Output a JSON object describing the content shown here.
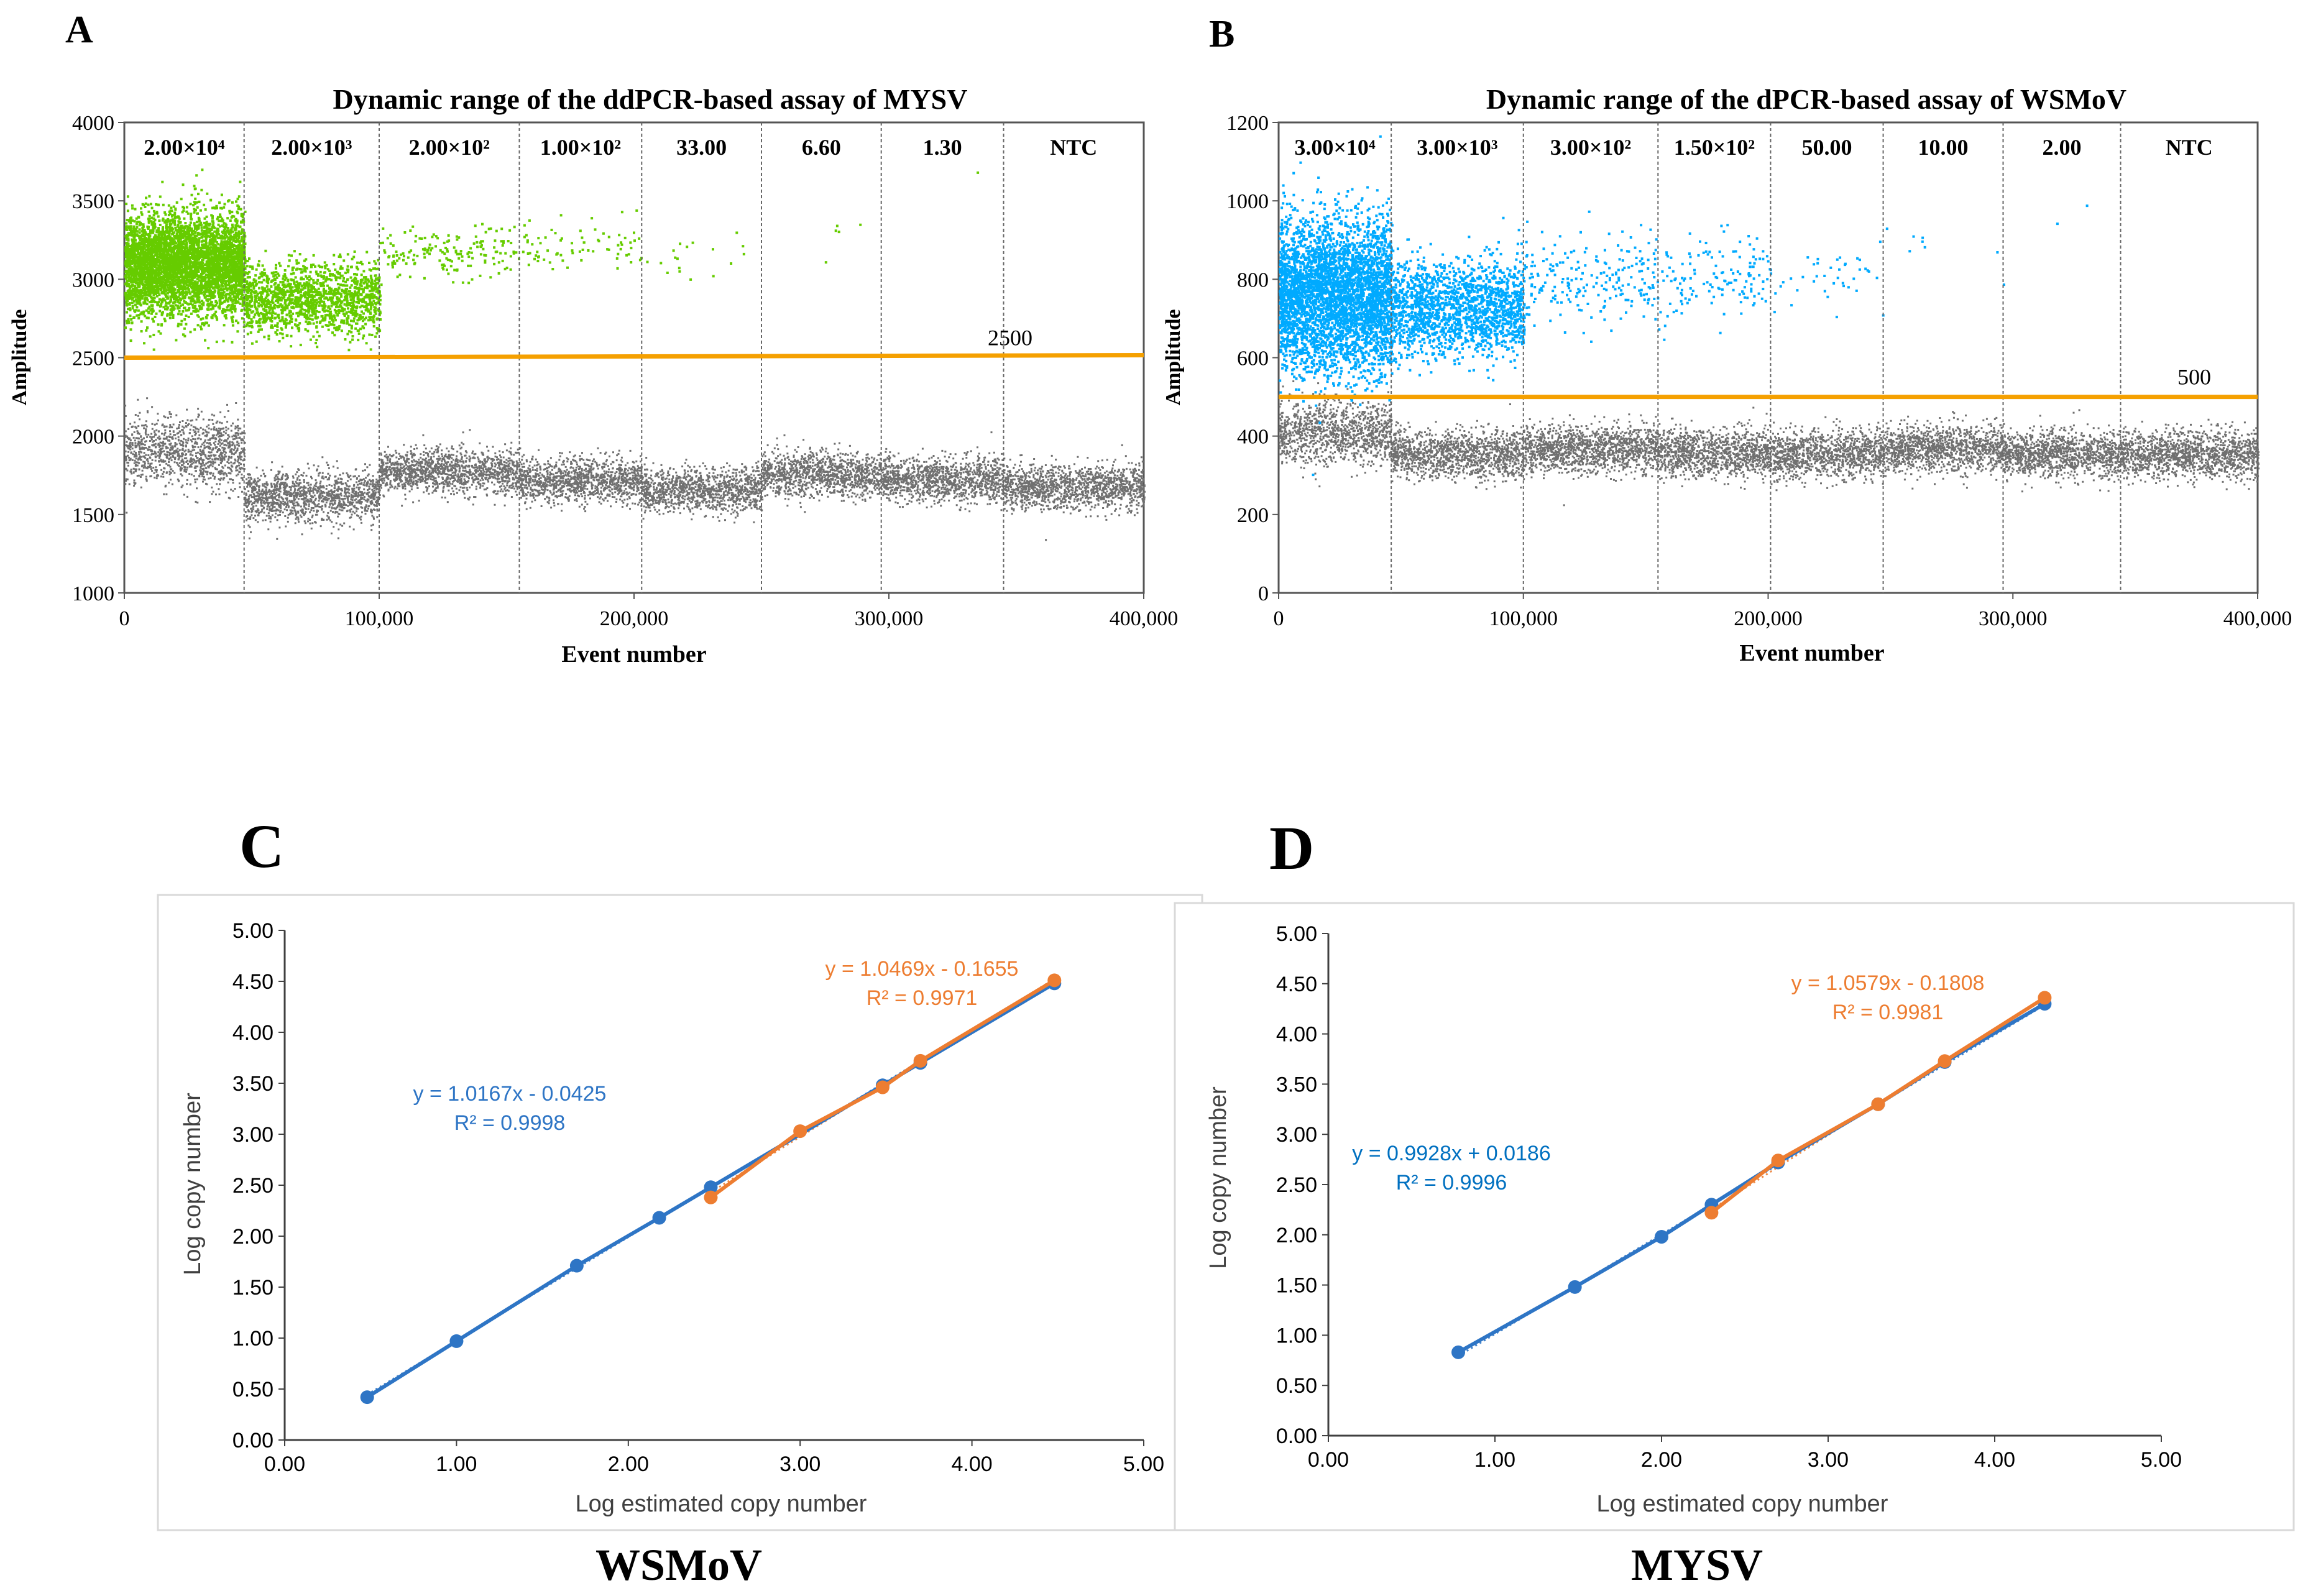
{
  "colors": {
    "green": "#66cc00",
    "cyan": "#00aaff",
    "gray": "#707070",
    "threshold": "#f5a000",
    "blue_fit": "#2e75c5",
    "orange_fit": "#ed7d31",
    "frame": "#555555"
  },
  "chart_data": [
    {
      "id": "A",
      "type": "scatter",
      "panel_label": "A",
      "title": "Dynamic range of the ddPCR-based assay of MYSV",
      "xlabel": "Event number",
      "ylabel": "Amplitude",
      "xlim": [
        0,
        400000
      ],
      "ylim": [
        1000,
        4000
      ],
      "xticks": [
        0,
        100000,
        200000,
        300000,
        400000
      ],
      "xtick_labels": [
        "0",
        "100,000",
        "200,000",
        "300,000",
        "400,000"
      ],
      "yticks": [
        1000,
        1500,
        2000,
        2500,
        3000,
        3500,
        4000
      ],
      "ytick_labels": [
        "1000",
        "1500",
        "2000",
        "2500",
        "3000",
        "3500",
        "4000"
      ],
      "threshold": 2500,
      "threshold_label": "2500",
      "dividers": [
        47000,
        100000,
        155000,
        203000,
        250000,
        297000,
        345000
      ],
      "segments": [
        {
          "label": "2.00×10⁴",
          "start": 0,
          "end": 47000,
          "pos_n": 4500,
          "pos_mean": 3100,
          "pos_sd": 160,
          "neg_mean": 1900,
          "neg_sd": 110
        },
        {
          "label": "2.00×10³",
          "start": 47000,
          "end": 100000,
          "pos_n": 1500,
          "pos_mean": 2880,
          "pos_sd": 110,
          "neg_mean": 1620,
          "neg_sd": 80
        },
        {
          "label": "2.00×10²",
          "start": 100000,
          "end": 155000,
          "pos_n": 170,
          "pos_mean": 3180,
          "pos_sd": 80,
          "neg_mean": 1780,
          "neg_sd": 70
        },
        {
          "label": "1.00×10²",
          "start": 155000,
          "end": 203000,
          "pos_n": 75,
          "pos_mean": 3220,
          "pos_sd": 90,
          "neg_mean": 1720,
          "neg_sd": 70
        },
        {
          "label": "33.00",
          "start": 203000,
          "end": 250000,
          "pos_n": 18,
          "pos_mean": 3180,
          "pos_sd": 90,
          "neg_mean": 1660,
          "neg_sd": 70
        },
        {
          "label": "6.60",
          "start": 250000,
          "end": 297000,
          "pos_n": 5,
          "pos_mean": 3350,
          "pos_sd": 100,
          "neg_mean": 1760,
          "neg_sd": 70
        },
        {
          "label": "1.30",
          "start": 297000,
          "end": 345000,
          "pos_n": 1,
          "pos_mean": 3600,
          "pos_sd": 100,
          "neg_mean": 1730,
          "neg_sd": 70
        },
        {
          "label": "NTC",
          "start": 345000,
          "end": 400000,
          "pos_n": 0,
          "pos_mean": 3000,
          "pos_sd": 100,
          "neg_mean": 1680,
          "neg_sd": 70
        }
      ]
    },
    {
      "id": "B",
      "type": "scatter",
      "panel_label": "B",
      "title": "Dynamic range of the dPCR-based assay of WSMoV",
      "xlabel": "Event number",
      "ylabel": "Amplitude",
      "xlim": [
        0,
        400000
      ],
      "ylim": [
        0,
        1200
      ],
      "xticks": [
        0,
        100000,
        200000,
        300000,
        400000
      ],
      "xtick_labels": [
        "0",
        "100,000",
        "200,000",
        "300,000",
        "400,000"
      ],
      "yticks": [
        0,
        200,
        400,
        600,
        800,
        1000,
        1200
      ],
      "ytick_labels": [
        "0",
        "200",
        "400",
        "600",
        "800",
        "1000",
        "1200"
      ],
      "threshold": 500,
      "threshold_label": "500",
      "dividers": [
        46000,
        100000,
        155000,
        201000,
        247000,
        296000,
        344000
      ],
      "segments": [
        {
          "label": "3.00×10⁴",
          "start": 0,
          "end": 46000,
          "pos_n": 4000,
          "pos_mean": 760,
          "pos_sd": 95,
          "neg_mean": 410,
          "neg_sd": 40
        },
        {
          "label": "3.00×10³",
          "start": 46000,
          "end": 100000,
          "pos_n": 1700,
          "pos_mean": 730,
          "pos_sd": 60,
          "neg_mean": 355,
          "neg_sd": 30
        },
        {
          "label": "3.00×10²",
          "start": 100000,
          "end": 155000,
          "pos_n": 220,
          "pos_mean": 800,
          "pos_sd": 55,
          "neg_mean": 370,
          "neg_sd": 30
        },
        {
          "label": "1.50×10²",
          "start": 155000,
          "end": 201000,
          "pos_n": 140,
          "pos_mean": 800,
          "pos_sd": 50,
          "neg_mean": 360,
          "neg_sd": 30
        },
        {
          "label": "50.00",
          "start": 201000,
          "end": 247000,
          "pos_n": 40,
          "pos_mean": 810,
          "pos_sd": 40,
          "neg_mean": 355,
          "neg_sd": 30
        },
        {
          "label": "10.00",
          "start": 247000,
          "end": 296000,
          "pos_n": 8,
          "pos_mean": 880,
          "pos_sd": 50,
          "neg_mean": 370,
          "neg_sd": 30
        },
        {
          "label": "2.00",
          "start": 296000,
          "end": 344000,
          "pos_n": 2,
          "pos_mean": 950,
          "pos_sd": 30,
          "neg_mean": 355,
          "neg_sd": 30
        },
        {
          "label": "NTC",
          "start": 344000,
          "end": 400000,
          "pos_n": 0,
          "pos_mean": 800,
          "pos_sd": 30,
          "neg_mean": 355,
          "neg_sd": 30
        }
      ]
    },
    {
      "id": "C",
      "type": "line",
      "panel_label": "C",
      "caption": "WSMoV",
      "xlabel": "Log estimated copy number",
      "ylabel": "Log copy number",
      "xlim": [
        0,
        5
      ],
      "ylim": [
        0,
        5
      ],
      "xticks": [
        0,
        1,
        2,
        3,
        4,
        5
      ],
      "xtick_labels": [
        "0.00",
        "1.00",
        "2.00",
        "3.00",
        "4.00",
        "5.00"
      ],
      "yticks": [
        0,
        0.5,
        1,
        1.5,
        2,
        2.5,
        3,
        3.5,
        4,
        4.5,
        5
      ],
      "ytick_labels": [
        "0.00",
        "0.50",
        "1.00",
        "1.50",
        "2.00",
        "2.50",
        "3.00",
        "3.50",
        "4.00",
        "4.50",
        "5.00"
      ],
      "series": [
        {
          "name": "blue",
          "color": "#2e75c5",
          "x": [
            0.48,
            1.0,
            1.7,
            2.18,
            2.48,
            3.48,
            3.7,
            4.48
          ],
          "y": [
            0.42,
            0.97,
            1.71,
            2.18,
            2.48,
            3.48,
            3.7,
            4.48
          ],
          "slope": 1.0167,
          "intercept": -0.0425,
          "equation": "y = 1.0167x - 0.0425",
          "r2": "R² = 0.9998"
        },
        {
          "name": "orange",
          "color": "#ed7d31",
          "x": [
            2.48,
            3.0,
            3.48,
            3.7,
            4.48
          ],
          "y": [
            2.38,
            3.03,
            3.46,
            3.72,
            4.51
          ],
          "slope": 1.0469,
          "intercept": -0.1655,
          "equation": "y = 1.0469x - 0.1655",
          "r2": "R² = 0.9971"
        }
      ]
    },
    {
      "id": "D",
      "type": "line",
      "panel_label": "D",
      "caption": "MYSV",
      "xlabel": "Log estimated copy number",
      "ylabel": "Log copy number",
      "xlim": [
        0,
        5
      ],
      "ylim": [
        0,
        5
      ],
      "xticks": [
        0,
        1,
        2,
        3,
        4,
        5
      ],
      "xtick_labels": [
        "0.00",
        "1.00",
        "2.00",
        "3.00",
        "4.00",
        "5.00"
      ],
      "yticks": [
        0,
        0.5,
        1,
        1.5,
        2,
        2.5,
        3,
        3.5,
        4,
        4.5,
        5
      ],
      "ytick_labels": [
        "0.00",
        "0.50",
        "1.00",
        "1.50",
        "2.00",
        "2.50",
        "3.00",
        "3.50",
        "4.00",
        "4.50",
        "5.00"
      ],
      "series": [
        {
          "name": "blue",
          "color": "#2e75c5",
          "x": [
            0.78,
            1.48,
            2.0,
            2.3,
            2.7,
            3.3,
            3.7,
            4.3
          ],
          "y": [
            0.83,
            1.48,
            1.98,
            2.3,
            2.72,
            3.3,
            3.72,
            4.3
          ],
          "slope": 0.9928,
          "intercept": 0.0186,
          "equation": "y = 0.9928x + 0.0186",
          "r2": "R² = 0.9996"
        },
        {
          "name": "orange",
          "color": "#ed7d31",
          "x": [
            2.3,
            2.7,
            3.3,
            3.7,
            4.3
          ],
          "y": [
            2.22,
            2.74,
            3.3,
            3.73,
            4.36
          ],
          "slope": 1.0579,
          "intercept": -0.1808,
          "equation": "y = 1.0579x - 0.1808",
          "r2": "R² = 0.9981"
        }
      ]
    }
  ]
}
